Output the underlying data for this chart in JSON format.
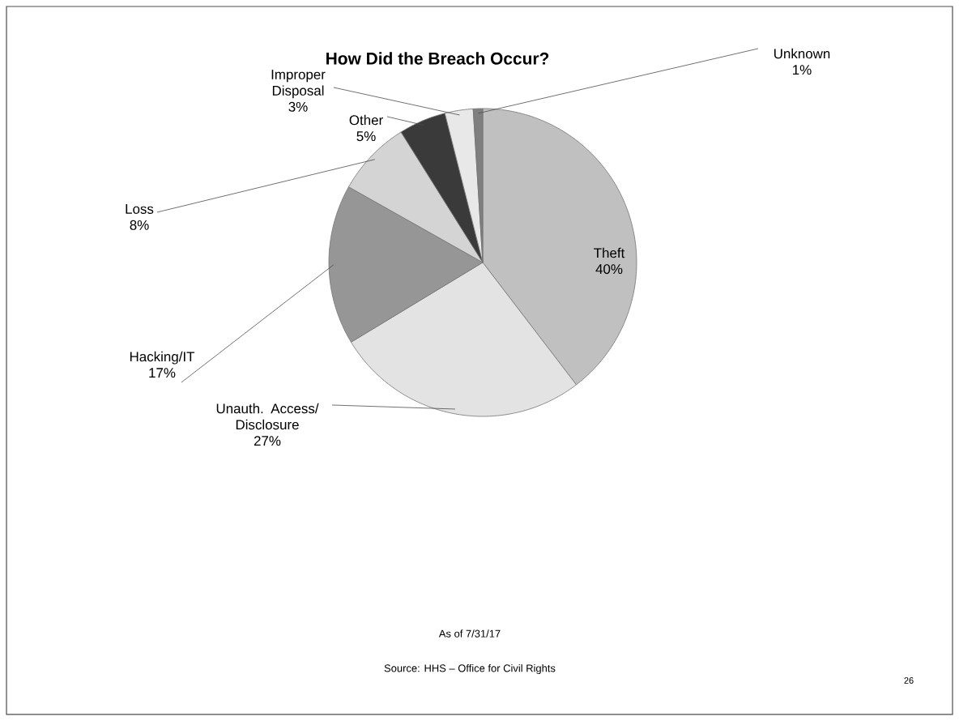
{
  "chart_data": {
    "type": "pie",
    "title": "How Did the Breach Occur?",
    "categories": [
      "Theft",
      "Unauth. Access/ Disclosure",
      "Hacking/IT",
      "Loss",
      "Other",
      "Improper Disposal",
      "Unknown"
    ],
    "values": [
      40,
      27,
      17,
      8,
      5,
      3,
      1
    ],
    "value_labels": [
      "40%",
      "27%",
      "17%",
      "8%",
      "5%",
      "3%",
      "1%"
    ],
    "colors": [
      "#c0c0c0",
      "#e3e3e3",
      "#969696",
      "#d4d4d4",
      "#3a3a3a",
      "#e8e8e8",
      "#7f7f7f"
    ],
    "annotations": [
      "As of 7/31/17",
      "Source: HHS – Office for Civil Rights",
      "26"
    ]
  }
}
